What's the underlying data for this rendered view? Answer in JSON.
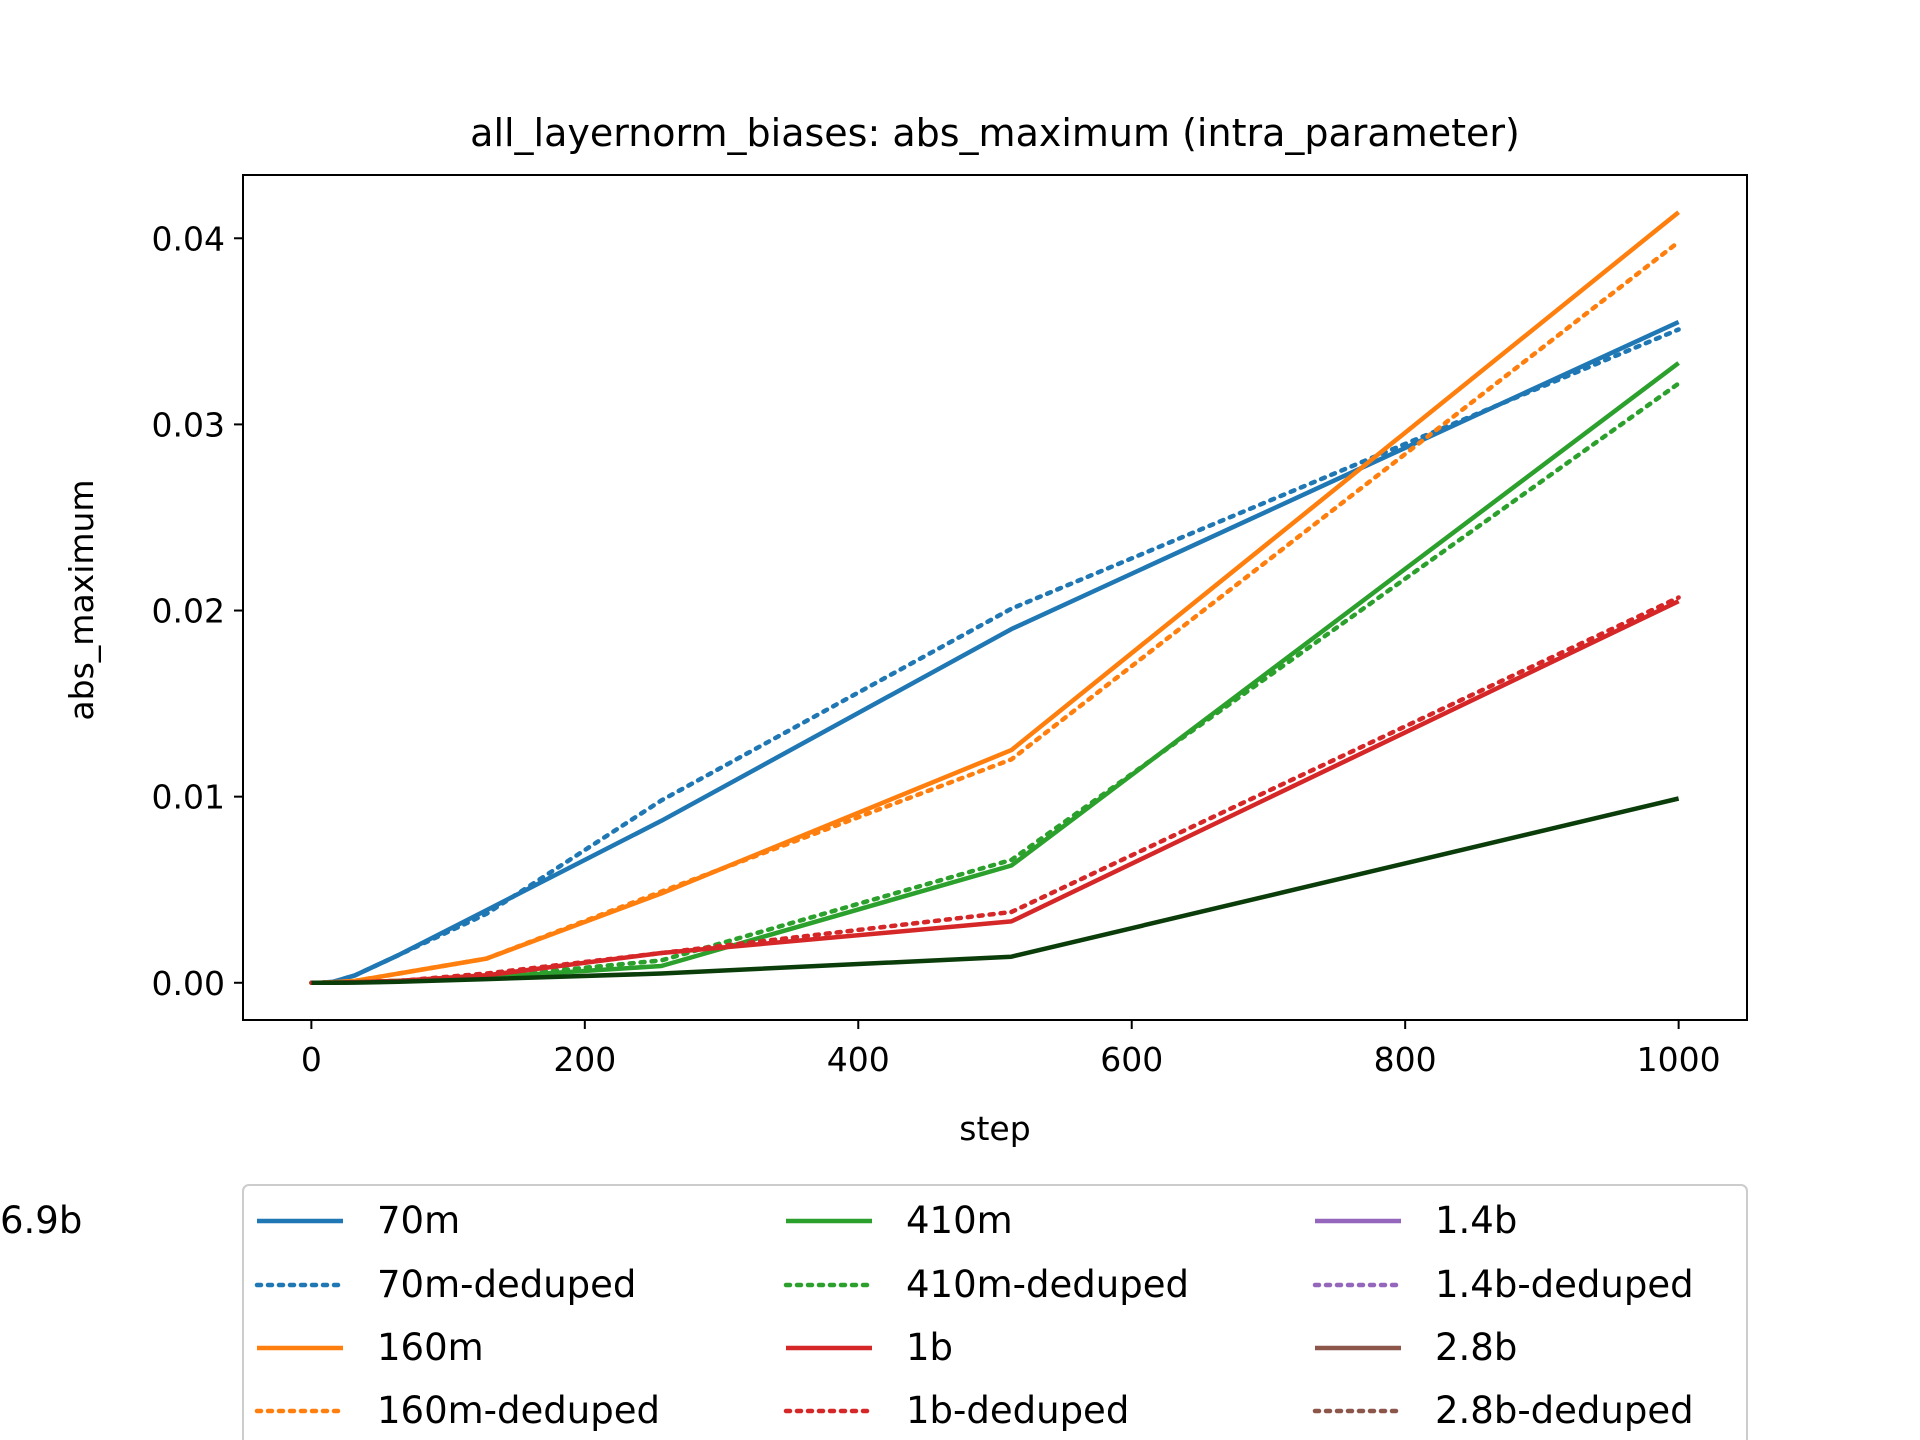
{
  "chart_data": {
    "type": "line",
    "title": "all_layernorm_biases: abs_maximum (intra_parameter)",
    "xlabel": "step",
    "ylabel": "abs_maximum",
    "xlim": [
      -50,
      1050
    ],
    "ylim": [
      -0.002,
      0.0434
    ],
    "xticks": [
      0,
      200,
      400,
      600,
      800,
      1000
    ],
    "xtick_labels": [
      "0",
      "200",
      "400",
      "600",
      "800",
      "1000"
    ],
    "yticks": [
      0,
      0.01,
      0.02,
      0.03,
      0.04
    ],
    "ytick_labels": [
      "0.00",
      "0.01",
      "0.02",
      "0.03",
      "0.04"
    ],
    "grid": false,
    "legend_position": "bottom-center",
    "legend_columns": 3,
    "series": [
      {
        "name": "70m",
        "color": "#1f77b4",
        "style": "solid",
        "x": [
          0,
          1,
          2,
          4,
          8,
          16,
          32,
          64,
          128,
          256,
          512,
          1000
        ],
        "y": [
          0,
          0,
          0,
          0,
          1e-05,
          5e-05,
          0.0004,
          0.0015,
          0.0039,
          0.0087,
          0.019,
          0.0355
        ]
      },
      {
        "name": "70m-deduped",
        "color": "#1f77b4",
        "style": "dotted",
        "x": [
          0,
          1,
          2,
          4,
          8,
          16,
          32,
          64,
          128,
          256,
          512,
          1000
        ],
        "y": [
          0,
          0,
          0,
          0,
          1e-05,
          5e-05,
          0.0004,
          0.0015,
          0.0037,
          0.0098,
          0.0201,
          0.0351
        ]
      },
      {
        "name": "160m",
        "color": "#ff7f0e",
        "style": "solid",
        "x": [
          0,
          1,
          2,
          4,
          8,
          16,
          32,
          64,
          128,
          256,
          512,
          1000
        ],
        "y": [
          0,
          0,
          0,
          0,
          1e-05,
          3e-05,
          0.0001,
          0.0005,
          0.0013,
          0.0048,
          0.0125,
          0.0414
        ]
      },
      {
        "name": "160m-deduped",
        "color": "#ff7f0e",
        "style": "dotted",
        "x": [
          0,
          1,
          2,
          4,
          8,
          16,
          32,
          64,
          128,
          256,
          512,
          1000
        ],
        "y": [
          0,
          0,
          0,
          0,
          1e-05,
          3e-05,
          0.0001,
          0.0005,
          0.0013,
          0.0049,
          0.012,
          0.0398
        ]
      },
      {
        "name": "410m",
        "color": "#2ca02c",
        "style": "solid",
        "x": [
          0,
          1,
          2,
          4,
          8,
          16,
          32,
          64,
          128,
          256,
          512,
          1000
        ],
        "y": [
          0,
          0,
          0,
          0,
          0,
          1e-05,
          3e-05,
          0.0001,
          0.0003,
          0.0009,
          0.0063,
          0.0333
        ]
      },
      {
        "name": "410m-deduped",
        "color": "#2ca02c",
        "style": "dotted",
        "x": [
          0,
          1,
          2,
          4,
          8,
          16,
          32,
          64,
          128,
          256,
          512,
          1000
        ],
        "y": [
          0,
          0,
          0,
          0,
          0,
          1e-05,
          3e-05,
          0.0001,
          0.0003,
          0.0012,
          0.0066,
          0.0322
        ]
      },
      {
        "name": "1b",
        "color": "#d62728",
        "style": "solid",
        "x": [
          0,
          1,
          2,
          4,
          8,
          16,
          32,
          64,
          128,
          256,
          512,
          1000
        ],
        "y": [
          0,
          0,
          0,
          0,
          0,
          1e-05,
          3e-05,
          0.0001,
          0.0004,
          0.0016,
          0.0033,
          0.0205
        ]
      },
      {
        "name": "1b-deduped",
        "color": "#d62728",
        "style": "dotted",
        "x": [
          0,
          1,
          2,
          4,
          8,
          16,
          32,
          64,
          128,
          256,
          512,
          1000
        ],
        "y": [
          0,
          0,
          0,
          0,
          0,
          1e-05,
          3e-05,
          0.0001,
          0.0005,
          0.0016,
          0.0038,
          0.0207
        ]
      },
      {
        "name": "1.4b",
        "color": "#9467bd",
        "style": "solid",
        "x": [],
        "y": []
      },
      {
        "name": "1.4b-deduped",
        "color": "#9467bd",
        "style": "dotted",
        "x": [],
        "y": []
      },
      {
        "name": "2.8b",
        "color": "#8c564b",
        "style": "solid",
        "x": [],
        "y": []
      },
      {
        "name": "2.8b-deduped",
        "color": "#8c564b",
        "style": "dotted",
        "x": [],
        "y": []
      },
      {
        "name": "6.9b",
        "color": "#0b3d0b",
        "style": "solid",
        "x": [
          0,
          1,
          2,
          4,
          8,
          16,
          32,
          64,
          128,
          256,
          512,
          1000
        ],
        "y": [
          0,
          0,
          0,
          0,
          0,
          0,
          1e-05,
          5e-05,
          0.0002,
          0.0005,
          0.0014,
          0.0099
        ]
      }
    ]
  }
}
